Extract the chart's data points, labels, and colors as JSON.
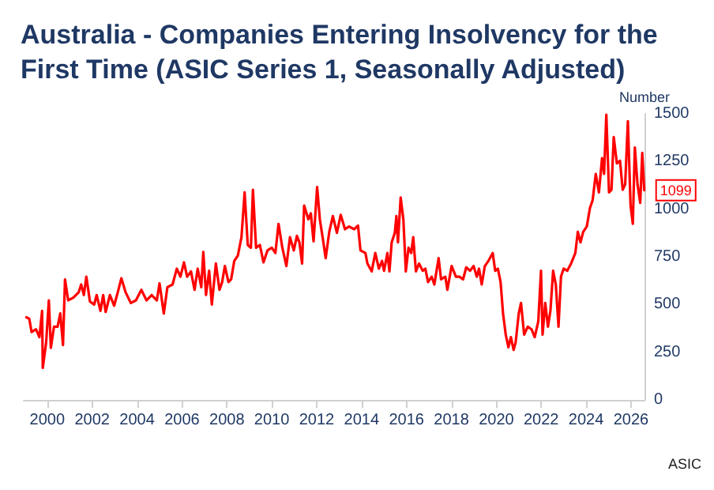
{
  "chart_data": {
    "type": "line",
    "title": "Australia - Companies Entering Insolvency for the First Time (ASIC Series 1, Seasonally Adjusted)",
    "ylabel": "Number",
    "annotations": [
      "ASIC",
      {
        "text": "1099",
        "x": 2026.59,
        "y": 1099
      }
    ],
    "xlim": [
      1998.95,
      2026.6
    ],
    "xticks": [
      2000,
      2002,
      2004,
      2006,
      2008,
      2010,
      2012,
      2014,
      2016,
      2018,
      2020,
      2022,
      2024,
      2026
    ],
    "ylim": [
      0,
      1500
    ],
    "yticks": [
      0,
      250,
      500,
      750,
      1000,
      1250,
      1500
    ],
    "marker": "none",
    "line_style": "solid",
    "series": [
      {
        "color": "#ff0000",
        "x": [
          1999.07,
          1999.2,
          1999.3,
          1999.5,
          1999.65,
          1999.77,
          1999.8,
          1999.95,
          2000.07,
          2000.16,
          2000.3,
          2000.46,
          2000.58,
          2000.7,
          2000.79,
          2000.93,
          2001.16,
          2001.4,
          2001.51,
          2001.63,
          2001.74,
          2001.9,
          2002.09,
          2002.2,
          2002.37,
          2002.49,
          2002.6,
          2002.79,
          2002.98,
          2003.14,
          2003.3,
          2003.49,
          2003.72,
          2003.95,
          2004.19,
          2004.42,
          2004.65,
          2004.88,
          2005.0,
          2005.19,
          2005.35,
          2005.58,
          2005.77,
          2005.93,
          2006.09,
          2006.23,
          2006.4,
          2006.56,
          2006.7,
          2006.86,
          2006.95,
          2007.07,
          2007.21,
          2007.33,
          2007.51,
          2007.67,
          2007.79,
          2007.91,
          2008.07,
          2008.19,
          2008.33,
          2008.49,
          2008.65,
          2008.79,
          2008.93,
          2009.07,
          2009.16,
          2009.3,
          2009.47,
          2009.63,
          2009.81,
          2010.0,
          2010.16,
          2010.3,
          2010.47,
          2010.65,
          2010.81,
          2010.98,
          2011.12,
          2011.23,
          2011.35,
          2011.44,
          2011.63,
          2011.74,
          2011.86,
          2012.02,
          2012.14,
          2012.28,
          2012.4,
          2012.56,
          2012.72,
          2012.9,
          2013.07,
          2013.26,
          2013.44,
          2013.67,
          2013.84,
          2013.95,
          2014.17,
          2014.26,
          2014.45,
          2014.61,
          2014.77,
          2014.91,
          2015.0,
          2015.15,
          2015.24,
          2015.34,
          2015.48,
          2015.55,
          2015.62,
          2015.74,
          2015.86,
          2015.97,
          2016.09,
          2016.21,
          2016.3,
          2016.42,
          2016.56,
          2016.72,
          2016.84,
          2016.96,
          2017.12,
          2017.24,
          2017.43,
          2017.54,
          2017.73,
          2017.82,
          2018.01,
          2018.2,
          2018.36,
          2018.52,
          2018.66,
          2018.83,
          2018.99,
          2019.13,
          2019.23,
          2019.35,
          2019.49,
          2019.65,
          2019.84,
          2019.95,
          2020.07,
          2020.19,
          2020.3,
          2020.42,
          2020.54,
          2020.65,
          2020.77,
          2020.86,
          2021.0,
          2021.1,
          2021.24,
          2021.4,
          2021.57,
          2021.71,
          2021.87,
          2021.99,
          2022.06,
          2022.18,
          2022.3,
          2022.41,
          2022.53,
          2022.65,
          2022.77,
          2022.88,
          2023.0,
          2023.16,
          2023.33,
          2023.52,
          2023.63,
          2023.75,
          2023.87,
          2024.03,
          2024.17,
          2024.29,
          2024.43,
          2024.57,
          2024.71,
          2024.8,
          2024.9,
          2025.02,
          2025.13,
          2025.23,
          2025.37,
          2025.51,
          2025.63,
          2025.74,
          2025.86,
          2025.98,
          2026.08,
          2026.17,
          2026.29,
          2026.41,
          2026.5,
          2026.59
        ],
        "values": [
          433,
          425,
          356,
          370,
          329,
          467,
          168,
          301,
          522,
          273,
          384,
          384,
          453,
          287,
          632,
          522,
          536,
          564,
          605,
          550,
          646,
          516,
          500,
          550,
          467,
          550,
          461,
          550,
          494,
          564,
          638,
          564,
          508,
          522,
          577,
          522,
          550,
          522,
          611,
          453,
          591,
          605,
          688,
          646,
          721,
          646,
          674,
          577,
          688,
          591,
          776,
          550,
          677,
          500,
          715,
          577,
          618,
          702,
          618,
          632,
          729,
          757,
          853,
          1088,
          812,
          798,
          1102,
          798,
          812,
          721,
          784,
          798,
          770,
          923,
          798,
          702,
          853,
          784,
          860,
          826,
          715,
          1019,
          947,
          978,
          831,
          1116,
          947,
          840,
          743,
          881,
          964,
          876,
          970,
          895,
          909,
          895,
          914,
          784,
          770,
          715,
          674,
          770,
          688,
          729,
          677,
          770,
          674,
          826,
          876,
          964,
          826,
          1061,
          947,
          674,
          798,
          770,
          853,
          674,
          715,
          677,
          688,
          618,
          646,
          605,
          743,
          632,
          646,
          577,
          702,
          646,
          646,
          632,
          695,
          677,
          702,
          646,
          688,
          605,
          702,
          729,
          770,
          677,
          688,
          618,
          453,
          342,
          276,
          329,
          262,
          301,
          453,
          508,
          342,
          384,
          370,
          329,
          412,
          677,
          342,
          508,
          384,
          467,
          677,
          605,
          384,
          646,
          688,
          677,
          715,
          770,
          881,
          826,
          881,
          909,
          1006,
          1047,
          1185,
          1088,
          1268,
          1185,
          1495,
          1088,
          1102,
          1378,
          1240,
          1254,
          1102,
          1130,
          1461,
          1019,
          923,
          1323,
          1130,
          1033,
          1295,
          1099
        ]
      }
    ]
  }
}
